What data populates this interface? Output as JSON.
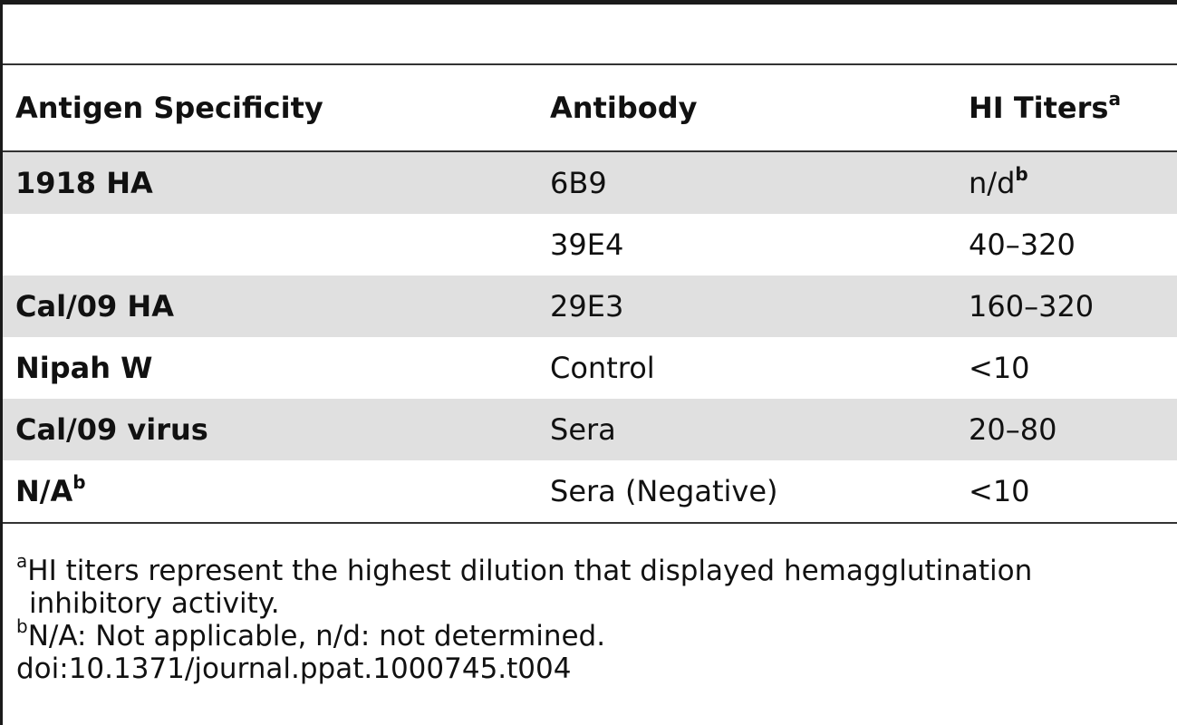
{
  "table": {
    "headers": {
      "antigen": "Antigen Specificity",
      "antibody": "Antibody",
      "titers": "HI Titers",
      "titers_sup": "a"
    },
    "rows": [
      {
        "antigen": "1918 HA",
        "antigen_sup": "",
        "antibody": "6B9",
        "titer": "n/d",
        "titer_sup": "b",
        "shaded": true
      },
      {
        "antigen": "",
        "antigen_sup": "",
        "antibody": "39E4",
        "titer": "40–320",
        "titer_sup": "",
        "shaded": false
      },
      {
        "antigen": "Cal/09 HA",
        "antigen_sup": "",
        "antibody": "29E3",
        "titer": "160–320",
        "titer_sup": "",
        "shaded": true
      },
      {
        "antigen": "Nipah W",
        "antigen_sup": "",
        "antibody": "Control",
        "titer": "<10",
        "titer_sup": "",
        "shaded": false
      },
      {
        "antigen": "Cal/09 virus",
        "antigen_sup": "",
        "antibody": "Sera",
        "titer": "20–80",
        "titer_sup": "",
        "shaded": true
      },
      {
        "antigen": "N/A",
        "antigen_sup": "b",
        "antibody": "Sera (Negative)",
        "titer": "<10",
        "titer_sup": "",
        "shaded": false
      }
    ]
  },
  "footnotes": {
    "a_mark": "a",
    "a_line1": "HI titers represent the highest dilution that displayed hemagglutination",
    "a_line2": "inhibitory activity.",
    "b_mark": "b",
    "b_text": "N/A: Not applicable, n/d: not determined.",
    "doi": "doi:10.1371/journal.ppat.1000745.t004"
  }
}
